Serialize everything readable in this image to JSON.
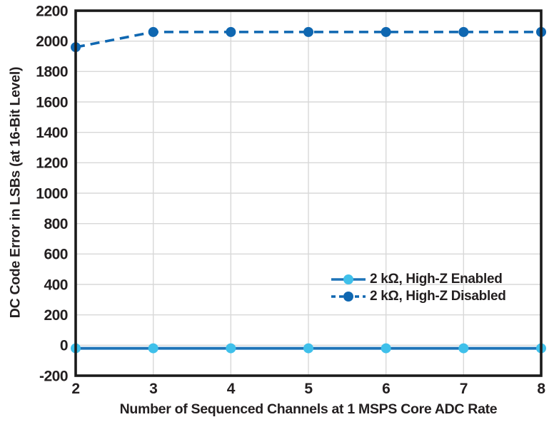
{
  "chart_data": {
    "type": "line",
    "title": "",
    "xlabel": "Number of Sequenced Channels at 1 MSPS Core ADC Rate",
    "ylabel": "DC Code Error in LSBs (at 16-Bit Level)",
    "xlim": [
      2,
      8
    ],
    "ylim": [
      -200,
      2200
    ],
    "x_ticks": [
      2,
      3,
      4,
      5,
      6,
      7,
      8
    ],
    "y_ticks": [
      -200,
      0,
      200,
      400,
      600,
      800,
      1000,
      1200,
      1400,
      1600,
      1800,
      2000,
      2200
    ],
    "grid": true,
    "grid_color": "#d8d8d8",
    "frame_color": "#1b1b1b",
    "tick_label_color": "#231f20",
    "legend_position": "inside-right-middle",
    "x": [
      2,
      3,
      4,
      5,
      6,
      7,
      8
    ],
    "series": [
      {
        "name": "2 kΩ, High-Z Enabled",
        "values": [
          -20,
          -20,
          -20,
          -20,
          -20,
          -20,
          -20
        ],
        "line_style": "solid",
        "line_color": "#1e74b8",
        "marker": "circle",
        "marker_color": "#3fc0ea"
      },
      {
        "name": "2 kΩ, High-Z Disabled",
        "values": [
          1960,
          2060,
          2060,
          2060,
          2060,
          2060,
          2060
        ],
        "line_style": "dashed",
        "line_color": "#0f67b1",
        "marker": "circle",
        "marker_color": "#0f67b1"
      }
    ]
  }
}
